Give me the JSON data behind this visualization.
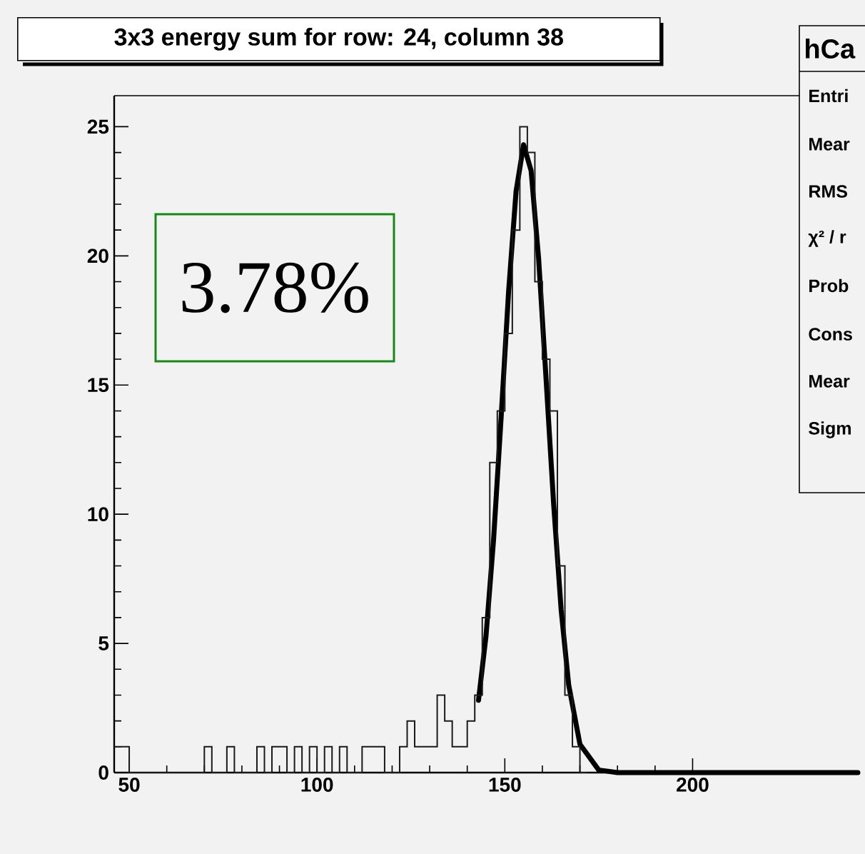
{
  "chart_data": {
    "type": "histogram",
    "title": "3x3 energy sum for row: 24, column 38",
    "xlim": [
      46,
      244
    ],
    "xticks": [
      50,
      100,
      150,
      200
    ],
    "ylim": [
      0,
      26.2
    ],
    "yticks": [
      0,
      5,
      10,
      15,
      20,
      25
    ],
    "color": "#1a1a1a",
    "bins": [
      46,
      48,
      50,
      52,
      54,
      56,
      58,
      60,
      62,
      64,
      66,
      68,
      70,
      72,
      74,
      76,
      78,
      80,
      82,
      84,
      86,
      88,
      90,
      92,
      94,
      96,
      98,
      100,
      102,
      104,
      106,
      108,
      110,
      112,
      114,
      116,
      118,
      120,
      122,
      124,
      126,
      128,
      130,
      132,
      134,
      136,
      138,
      140,
      142,
      144,
      146,
      148,
      150,
      152,
      154,
      156,
      158,
      160,
      162,
      164,
      166,
      168,
      170,
      172
    ],
    "values": [
      1,
      1,
      0,
      0,
      0,
      0,
      0,
      0,
      0,
      0,
      0,
      0,
      1,
      0,
      0,
      1,
      0,
      0,
      0,
      1,
      0,
      1,
      1,
      0,
      1,
      0,
      1,
      0,
      1,
      0,
      1,
      0,
      0,
      1,
      1,
      1,
      0,
      0,
      1,
      2,
      1,
      1,
      1,
      3,
      2,
      1,
      1,
      2,
      3,
      6,
      12,
      14,
      17,
      21,
      25,
      24,
      19,
      16,
      14,
      8,
      3,
      1,
      0
    ],
    "series": [
      {
        "type": "line",
        "color": "#000000",
        "x": [
          143,
          145,
          147,
          149,
          151,
          153,
          155,
          157,
          159,
          161,
          163,
          165,
          167,
          170,
          175,
          180,
          200,
          244
        ],
        "values": [
          2.8,
          5.3,
          9.0,
          13.7,
          18.6,
          22.5,
          24.3,
          23.3,
          19.9,
          15.2,
          10.4,
          6.3,
          3.4,
          1.1,
          0.1,
          0,
          0,
          0
        ]
      }
    ],
    "annotations": [
      "3.78%",
      "hCa",
      "Entri",
      "Mear",
      "RMS",
      "χ² / r",
      "Prob",
      "Cons",
      "Mear",
      "Sigm"
    ]
  }
}
